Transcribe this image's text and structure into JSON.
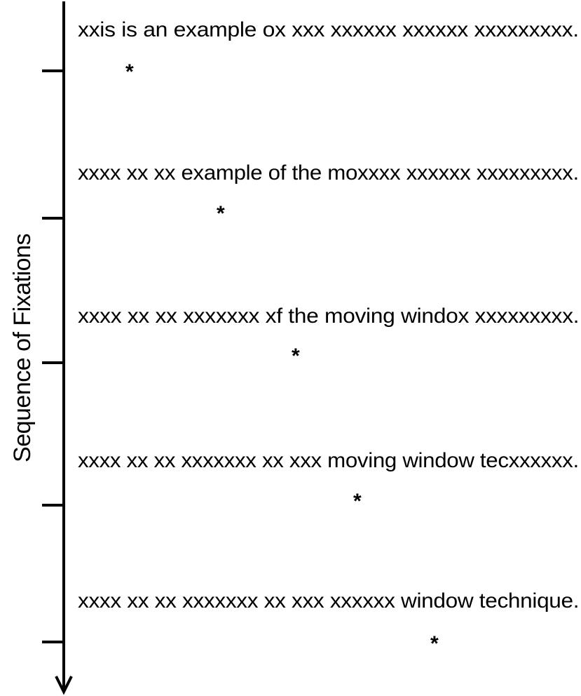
{
  "axis": {
    "label": "Sequence of Fixations"
  },
  "fixations": [
    {
      "text": "xxis is an  example ox xxx xxxxxx xxxxxx xxxxxxxxx.",
      "marker": "*"
    },
    {
      "text": "xxxx xx xx example of the moxxxx xxxxxx xxxxxxxxx.",
      "marker": "*"
    },
    {
      "text": "xxxx xx xx xxxxxxx xf the moving windox xxxxxxxxx.",
      "marker": "*"
    },
    {
      "text": "xxxx xx xx xxxxxxx xx xxx moving window tecxxxxxx.",
      "marker": "*"
    },
    {
      "text": "xxxx xx xx xxxxxxx xx xxx xxxxxx window technique.",
      "marker": "*"
    }
  ]
}
